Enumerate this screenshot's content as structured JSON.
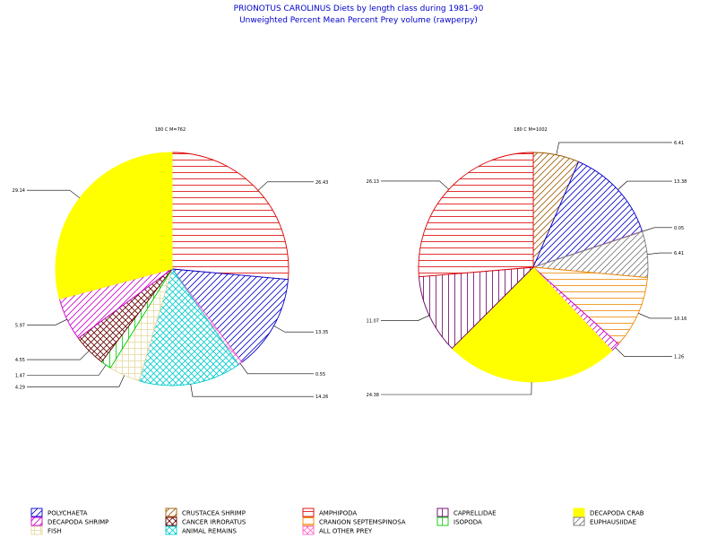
{
  "chart_data": [
    {
      "type": "pie",
      "title": "PRIONOTUS CAROLINUS Diets by length class during 1981–90",
      "subtitle": "Unweighted Percent Mean Percent Prey  volume (rawperpy)",
      "charts": [
        {
          "label": "180 C M=762",
          "slices": [
            {
              "category": "AMPHIPODA",
              "value": 26.43,
              "label": "26.43"
            },
            {
              "category": "POLYCHAETA",
              "value": 13.35,
              "label": "13.35"
            },
            {
              "category": "ALL OTHER PREY",
              "value": 0.55,
              "label": "0.55"
            },
            {
              "category": "ANIMAL REMAINS",
              "value": 14.26,
              "label": "14.26"
            },
            {
              "category": "FISH",
              "value": 4.29,
              "label": "4.29"
            },
            {
              "category": "ISOPODA",
              "value": 1.47,
              "label": "1.47"
            },
            {
              "category": "CANCER IRRORATUS",
              "value": 4.55,
              "label": "4.55"
            },
            {
              "category": "DECAPODA SHRIMP",
              "value": 5.97,
              "label": "5.97"
            },
            {
              "category": "DECAPODA CRAB",
              "value": 29.14,
              "label": "29.14"
            }
          ]
        },
        {
          "label": "180 C M=1002",
          "slices": [
            {
              "category": "CRUSTACEA SHRIMP",
              "value": 6.41,
              "label": "6.41"
            },
            {
              "category": "POLYCHAETA",
              "value": 13.38,
              "label": "13.38"
            },
            {
              "category": "ALL OTHER PREY",
              "value": 0.05,
              "label": "0.05"
            },
            {
              "category": "EUPHAUSIIDAE",
              "value": 6.41,
              "label": "6.41"
            },
            {
              "category": "CRANGON SEPTEMSPINOSA",
              "value": 10.16,
              "label": "10.16"
            },
            {
              "category": "DECAPODA SHRIMP",
              "value": 1.26,
              "label": "1.26"
            },
            {
              "category": "DECAPODA CRAB",
              "value": 24.38,
              "label": "24.38"
            },
            {
              "category": "CAPRELLIDAE",
              "value": 11.07,
              "label": "11.07"
            },
            {
              "category": "AMPHIPODA",
              "value": 26.13,
              "label": "26.13"
            }
          ]
        }
      ],
      "legend": [
        {
          "name": "POLYCHAETA",
          "color": "#0000cc",
          "icon": "diag-hatch-icon"
        },
        {
          "name": "DECAPODA SHRIMP",
          "color": "#cc00cc",
          "icon": "diag-hatch-icon"
        },
        {
          "name": "FISH",
          "color": "#e6d8a0",
          "icon": "grid-hatch-icon"
        },
        {
          "name": "CRUSTACEA SHRIMP",
          "color": "#a05a00",
          "icon": "diag-hatch-icon"
        },
        {
          "name": "CANCER IRRORATUS",
          "color": "#660000",
          "icon": "cross-hatch-icon"
        },
        {
          "name": "ANIMAL REMAINS",
          "color": "#00cccc",
          "icon": "cross-hatch-icon"
        },
        {
          "name": "AMPHIPODA",
          "color": "#dd0000",
          "icon": "horizontal-hatch-icon"
        },
        {
          "name": "CRANGON SEPTEMSPINOSA",
          "color": "#ee8800",
          "icon": "horizontal-hatch-icon"
        },
        {
          "name": "ALL OTHER PREY",
          "color": "#ff66cc",
          "icon": "cross-hatch-icon"
        },
        {
          "name": "CAPRELLIDAE",
          "color": "#660066",
          "icon": "vertical-hatch-icon"
        },
        {
          "name": "ISOPODA",
          "color": "#00cc00",
          "icon": "vertical-hatch-icon"
        },
        {
          "name": "DECAPODA CRAB",
          "color": "#ffff00",
          "icon": "solid-fill-icon"
        },
        {
          "name": "EUPHAUSIIDAE",
          "color": "#777777",
          "icon": "diag-hatch-icon"
        }
      ]
    }
  ]
}
